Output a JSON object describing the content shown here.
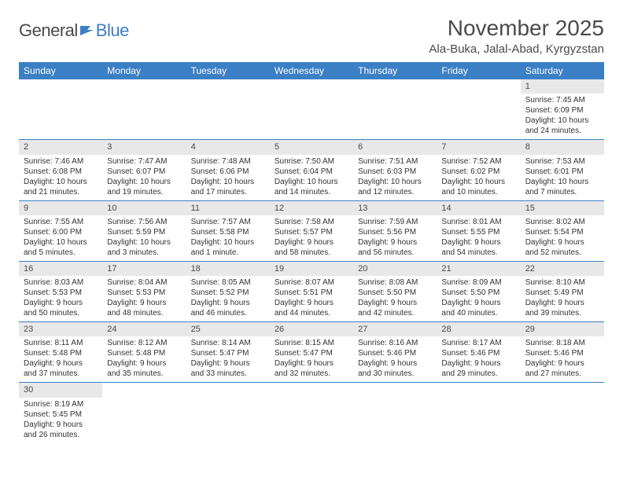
{
  "logo": {
    "text_general": "General",
    "text_blue": "Blue",
    "icon_color": "#3b7fc4"
  },
  "title": "November 2025",
  "location": "Ala-Buka, Jalal-Abad, Kyrgyzstan",
  "colors": {
    "header_bg": "#3b7fc4",
    "header_text": "#ffffff",
    "daynum_bg": "#e8e8e8",
    "text": "#4a4a4a",
    "border": "#3b7fc4"
  },
  "days_of_week": [
    "Sunday",
    "Monday",
    "Tuesday",
    "Wednesday",
    "Thursday",
    "Friday",
    "Saturday"
  ],
  "weeks": [
    [
      null,
      null,
      null,
      null,
      null,
      null,
      {
        "n": "1",
        "sr": "Sunrise: 7:45 AM",
        "ss": "Sunset: 6:09 PM",
        "d1": "Daylight: 10 hours",
        "d2": "and 24 minutes."
      }
    ],
    [
      {
        "n": "2",
        "sr": "Sunrise: 7:46 AM",
        "ss": "Sunset: 6:08 PM",
        "d1": "Daylight: 10 hours",
        "d2": "and 21 minutes."
      },
      {
        "n": "3",
        "sr": "Sunrise: 7:47 AM",
        "ss": "Sunset: 6:07 PM",
        "d1": "Daylight: 10 hours",
        "d2": "and 19 minutes."
      },
      {
        "n": "4",
        "sr": "Sunrise: 7:48 AM",
        "ss": "Sunset: 6:06 PM",
        "d1": "Daylight: 10 hours",
        "d2": "and 17 minutes."
      },
      {
        "n": "5",
        "sr": "Sunrise: 7:50 AM",
        "ss": "Sunset: 6:04 PM",
        "d1": "Daylight: 10 hours",
        "d2": "and 14 minutes."
      },
      {
        "n": "6",
        "sr": "Sunrise: 7:51 AM",
        "ss": "Sunset: 6:03 PM",
        "d1": "Daylight: 10 hours",
        "d2": "and 12 minutes."
      },
      {
        "n": "7",
        "sr": "Sunrise: 7:52 AM",
        "ss": "Sunset: 6:02 PM",
        "d1": "Daylight: 10 hours",
        "d2": "and 10 minutes."
      },
      {
        "n": "8",
        "sr": "Sunrise: 7:53 AM",
        "ss": "Sunset: 6:01 PM",
        "d1": "Daylight: 10 hours",
        "d2": "and 7 minutes."
      }
    ],
    [
      {
        "n": "9",
        "sr": "Sunrise: 7:55 AM",
        "ss": "Sunset: 6:00 PM",
        "d1": "Daylight: 10 hours",
        "d2": "and 5 minutes."
      },
      {
        "n": "10",
        "sr": "Sunrise: 7:56 AM",
        "ss": "Sunset: 5:59 PM",
        "d1": "Daylight: 10 hours",
        "d2": "and 3 minutes."
      },
      {
        "n": "11",
        "sr": "Sunrise: 7:57 AM",
        "ss": "Sunset: 5:58 PM",
        "d1": "Daylight: 10 hours",
        "d2": "and 1 minute."
      },
      {
        "n": "12",
        "sr": "Sunrise: 7:58 AM",
        "ss": "Sunset: 5:57 PM",
        "d1": "Daylight: 9 hours",
        "d2": "and 58 minutes."
      },
      {
        "n": "13",
        "sr": "Sunrise: 7:59 AM",
        "ss": "Sunset: 5:56 PM",
        "d1": "Daylight: 9 hours",
        "d2": "and 56 minutes."
      },
      {
        "n": "14",
        "sr": "Sunrise: 8:01 AM",
        "ss": "Sunset: 5:55 PM",
        "d1": "Daylight: 9 hours",
        "d2": "and 54 minutes."
      },
      {
        "n": "15",
        "sr": "Sunrise: 8:02 AM",
        "ss": "Sunset: 5:54 PM",
        "d1": "Daylight: 9 hours",
        "d2": "and 52 minutes."
      }
    ],
    [
      {
        "n": "16",
        "sr": "Sunrise: 8:03 AM",
        "ss": "Sunset: 5:53 PM",
        "d1": "Daylight: 9 hours",
        "d2": "and 50 minutes."
      },
      {
        "n": "17",
        "sr": "Sunrise: 8:04 AM",
        "ss": "Sunset: 5:53 PM",
        "d1": "Daylight: 9 hours",
        "d2": "and 48 minutes."
      },
      {
        "n": "18",
        "sr": "Sunrise: 8:05 AM",
        "ss": "Sunset: 5:52 PM",
        "d1": "Daylight: 9 hours",
        "d2": "and 46 minutes."
      },
      {
        "n": "19",
        "sr": "Sunrise: 8:07 AM",
        "ss": "Sunset: 5:51 PM",
        "d1": "Daylight: 9 hours",
        "d2": "and 44 minutes."
      },
      {
        "n": "20",
        "sr": "Sunrise: 8:08 AM",
        "ss": "Sunset: 5:50 PM",
        "d1": "Daylight: 9 hours",
        "d2": "and 42 minutes."
      },
      {
        "n": "21",
        "sr": "Sunrise: 8:09 AM",
        "ss": "Sunset: 5:50 PM",
        "d1": "Daylight: 9 hours",
        "d2": "and 40 minutes."
      },
      {
        "n": "22",
        "sr": "Sunrise: 8:10 AM",
        "ss": "Sunset: 5:49 PM",
        "d1": "Daylight: 9 hours",
        "d2": "and 39 minutes."
      }
    ],
    [
      {
        "n": "23",
        "sr": "Sunrise: 8:11 AM",
        "ss": "Sunset: 5:48 PM",
        "d1": "Daylight: 9 hours",
        "d2": "and 37 minutes."
      },
      {
        "n": "24",
        "sr": "Sunrise: 8:12 AM",
        "ss": "Sunset: 5:48 PM",
        "d1": "Daylight: 9 hours",
        "d2": "and 35 minutes."
      },
      {
        "n": "25",
        "sr": "Sunrise: 8:14 AM",
        "ss": "Sunset: 5:47 PM",
        "d1": "Daylight: 9 hours",
        "d2": "and 33 minutes."
      },
      {
        "n": "26",
        "sr": "Sunrise: 8:15 AM",
        "ss": "Sunset: 5:47 PM",
        "d1": "Daylight: 9 hours",
        "d2": "and 32 minutes."
      },
      {
        "n": "27",
        "sr": "Sunrise: 8:16 AM",
        "ss": "Sunset: 5:46 PM",
        "d1": "Daylight: 9 hours",
        "d2": "and 30 minutes."
      },
      {
        "n": "28",
        "sr": "Sunrise: 8:17 AM",
        "ss": "Sunset: 5:46 PM",
        "d1": "Daylight: 9 hours",
        "d2": "and 29 minutes."
      },
      {
        "n": "29",
        "sr": "Sunrise: 8:18 AM",
        "ss": "Sunset: 5:46 PM",
        "d1": "Daylight: 9 hours",
        "d2": "and 27 minutes."
      }
    ],
    [
      {
        "n": "30",
        "sr": "Sunrise: 8:19 AM",
        "ss": "Sunset: 5:45 PM",
        "d1": "Daylight: 9 hours",
        "d2": "and 26 minutes."
      },
      null,
      null,
      null,
      null,
      null,
      null
    ]
  ]
}
